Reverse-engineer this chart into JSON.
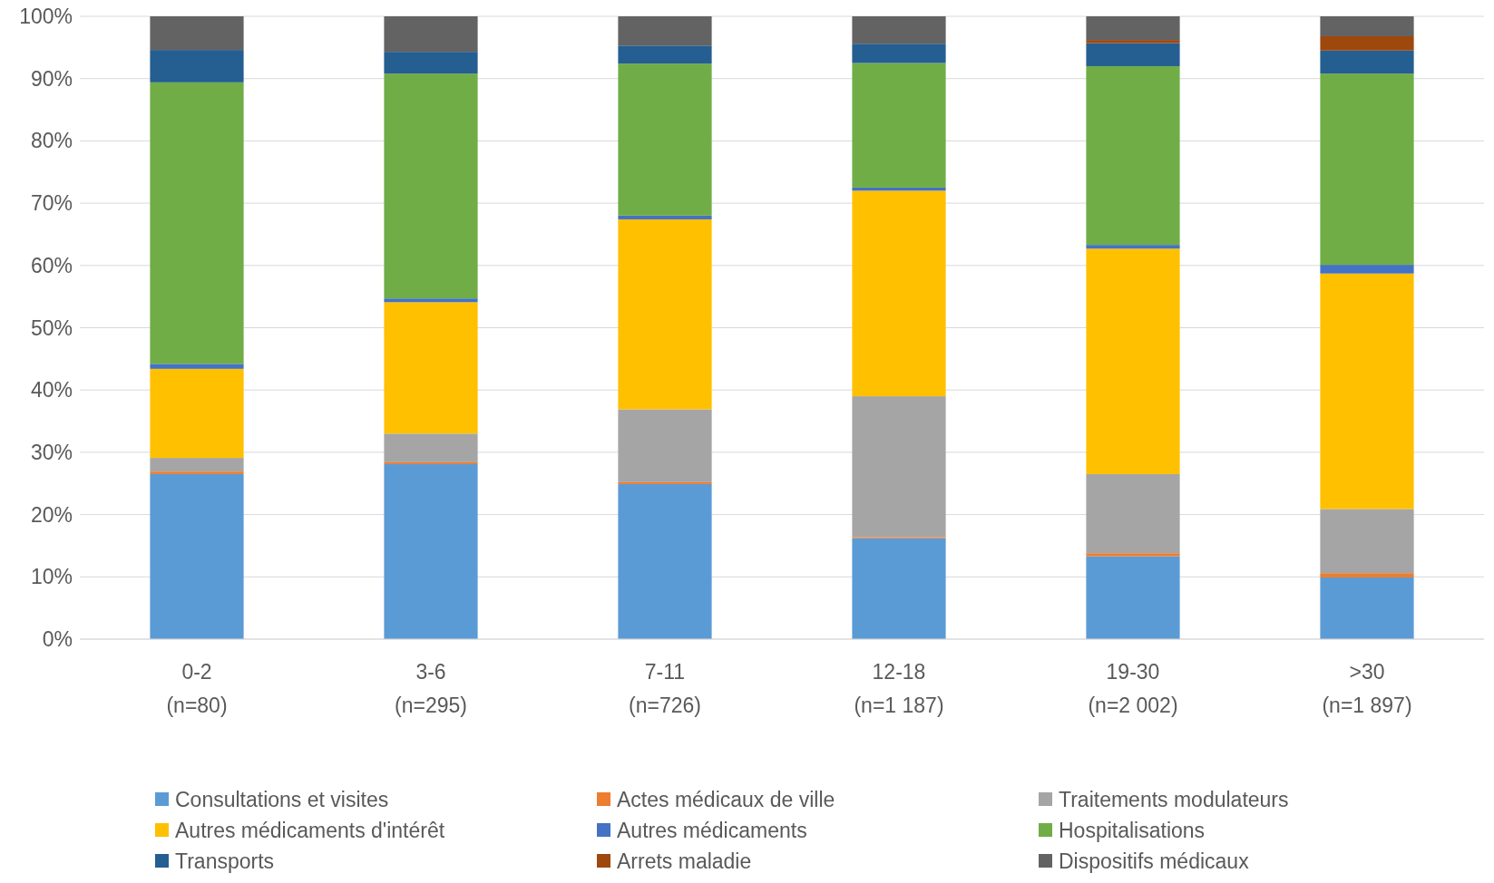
{
  "chart_data": {
    "type": "bar",
    "stacked": true,
    "categories": [
      "0-2\n(n=80)",
      "3-6\n(n=295)",
      "7-11\n(n=726)",
      "12-18\n(n=1 187)",
      "19-30\n(n=2 002)",
      ">30\n(n=1 897)"
    ],
    "ylim": [
      0,
      100
    ],
    "yticks": [
      {
        "value": 0,
        "label": "0%"
      },
      {
        "value": 10,
        "label": "10%"
      },
      {
        "value": 20,
        "label": "20%"
      },
      {
        "value": 30,
        "label": "30%"
      },
      {
        "value": 40,
        "label": "40%"
      },
      {
        "value": 50,
        "label": "50%"
      },
      {
        "value": 60,
        "label": "60%"
      },
      {
        "value": 70,
        "label": "70%"
      },
      {
        "value": 80,
        "label": "80%"
      },
      {
        "value": 90,
        "label": "90%"
      },
      {
        "value": 100,
        "label": "100%"
      }
    ],
    "grid": "y",
    "legend": "bottom",
    "series": [
      {
        "name": "Consultations et visites",
        "color": "#5b9bd5",
        "values": [
          26.5,
          28.1,
          24.9,
          16.2,
          13.3,
          9.9
        ]
      },
      {
        "name": "Actes médicaux de ville",
        "color": "#ed7d31",
        "values": [
          0.4,
          0.3,
          0.3,
          0.2,
          0.5,
          0.7
        ]
      },
      {
        "name": "Traitements modulateurs",
        "color": "#a5a5a5",
        "values": [
          2.2,
          4.6,
          11.7,
          22.6,
          12.7,
          10.3
        ]
      },
      {
        "name": "Autres médicaments d'intérêt",
        "color": "#ffc000",
        "values": [
          14.3,
          21.1,
          30.5,
          33.0,
          36.2,
          37.8
        ]
      },
      {
        "name": "Autres médicaments",
        "color": "#4472c4",
        "values": [
          0.8,
          0.6,
          0.6,
          0.5,
          0.6,
          1.4
        ]
      },
      {
        "name": "Hospitalisations",
        "color": "#70ad47",
        "values": [
          45.2,
          36.1,
          24.4,
          20.0,
          28.7,
          30.7
        ]
      },
      {
        "name": "Transports",
        "color": "#255e91",
        "values": [
          5.2,
          3.5,
          2.9,
          3.1,
          3.7,
          3.7
        ]
      },
      {
        "name": "Arrets maladie",
        "color": "#9e480e",
        "values": [
          0,
          0,
          0,
          0,
          0.5,
          2.3
        ]
      },
      {
        "name": "Dispositifs médicaux",
        "color": "#636363",
        "values": [
          5.4,
          5.7,
          4.7,
          4.4,
          3.8,
          3.2
        ]
      }
    ]
  }
}
